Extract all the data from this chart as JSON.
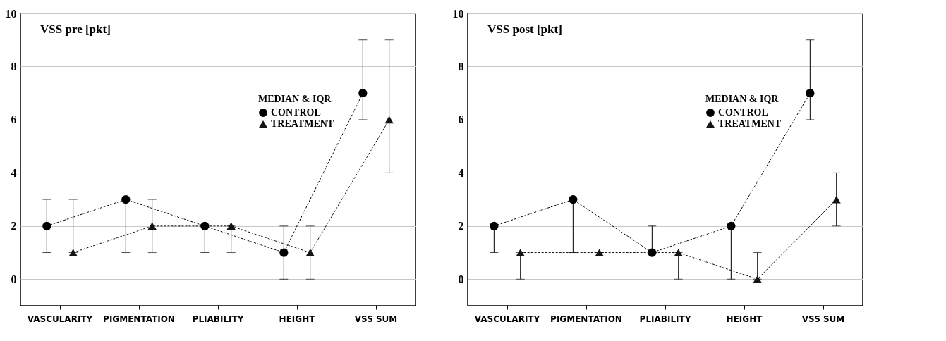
{
  "chart_data": [
    {
      "type": "line",
      "title": "VSS pre [pkt]",
      "legend_title": "MEDIAN & IQR",
      "categories": [
        "VASCULARITY",
        "PIGMENTATION",
        "PLIABILITY",
        "HEIGHT",
        "VSS SUM"
      ],
      "ylim": [
        -1,
        10
      ],
      "yticks": [
        0,
        2,
        4,
        6,
        8,
        10
      ],
      "grid": "y",
      "legend": "top right",
      "line_style": "dashed",
      "series": [
        {
          "name": "CONTROL",
          "color": "#000000",
          "marker": "circle",
          "values": [
            2,
            3,
            2,
            1,
            7
          ],
          "errors": [
            [
              1,
              3
            ],
            [
              1,
              3
            ],
            [
              1,
              2
            ],
            [
              0,
              2
            ],
            [
              6,
              9
            ]
          ]
        },
        {
          "name": "TREATMENT",
          "color": "#141414",
          "marker": "triangle",
          "values": [
            1,
            2,
            2,
            1,
            6
          ],
          "errors": [
            [
              1,
              3
            ],
            [
              1,
              3
            ],
            [
              1,
              2
            ],
            [
              0,
              2
            ],
            [
              4,
              9
            ]
          ]
        }
      ]
    },
    {
      "type": "line",
      "title": "VSS post [pkt]",
      "legend_title": "MEDIAN & IQR",
      "categories": [
        "VASCULARITY",
        "PIGMENTATION",
        "PLIABILITY",
        "HEIGHT",
        "VSS SUM"
      ],
      "ylim": [
        -1,
        10
      ],
      "yticks": [
        0,
        2,
        4,
        6,
        8,
        10
      ],
      "grid": "y",
      "legend": "top right",
      "line_style": "dashed",
      "series": [
        {
          "name": "CONTROL",
          "color": "#000000",
          "marker": "circle",
          "values": [
            2,
            3,
            1,
            2,
            7
          ],
          "errors": [
            [
              1,
              2
            ],
            [
              1,
              3
            ],
            [
              1,
              2
            ],
            [
              0,
              2
            ],
            [
              6,
              9
            ]
          ]
        },
        {
          "name": "TREATMENT",
          "color": "#141414",
          "marker": "triangle",
          "values": [
            1,
            1,
            1,
            0,
            3
          ],
          "errors": [
            [
              0,
              1
            ],
            [
              1,
              1
            ],
            [
              0,
              1
            ],
            [
              0,
              1
            ],
            [
              2,
              4
            ]
          ]
        }
      ]
    }
  ]
}
